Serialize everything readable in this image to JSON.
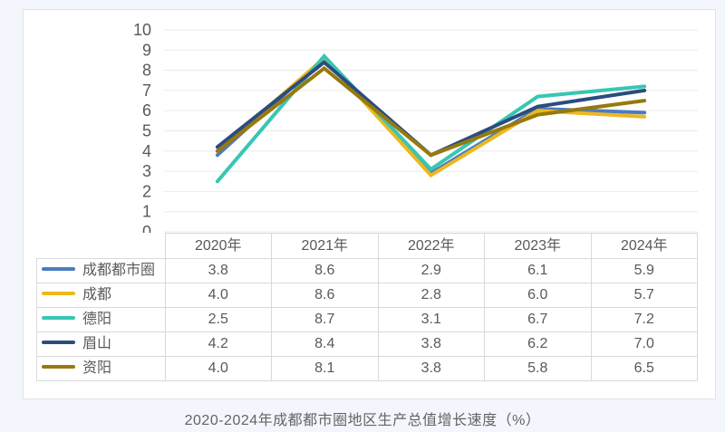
{
  "page": {
    "background_color": "#f3f6fc",
    "card_background": "#ffffff",
    "grid_color": "#ebebeb",
    "axis_text_color": "#595959",
    "table_border_color": "#d9d9d9",
    "table_text_color": "#595959",
    "caption_color": "#646464"
  },
  "caption": "2020-2024年成都都市圈地区生产总值增长速度（%）",
  "chart_data": {
    "type": "line",
    "title": "2020-2024年成都都市圈地区生产总值增长速度（%）",
    "categories": [
      "2020年",
      "2021年",
      "2022年",
      "2023年",
      "2024年"
    ],
    "series": [
      {
        "name": "成都都市圈",
        "color": "#4C7CC0",
        "values": [
          3.8,
          8.6,
          2.9,
          6.1,
          5.9
        ]
      },
      {
        "name": "成都",
        "color": "#EDB81E",
        "values": [
          4.0,
          8.6,
          2.8,
          6.0,
          5.7
        ]
      },
      {
        "name": "德阳",
        "color": "#38C6B4",
        "values": [
          2.5,
          8.7,
          3.1,
          6.7,
          7.2
        ]
      },
      {
        "name": "眉山",
        "color": "#2B4C7E",
        "values": [
          4.2,
          8.4,
          3.8,
          6.2,
          7.0
        ]
      },
      {
        "name": "资阳",
        "color": "#97790D",
        "values": [
          4.0,
          8.1,
          3.8,
          5.8,
          6.5
        ]
      }
    ],
    "xlabel": "",
    "ylabel": "",
    "ylim": [
      0,
      10
    ],
    "ytick_step": 1,
    "grid": "horizontal",
    "legend_position": "table-first-column",
    "value_decimals": 1
  }
}
